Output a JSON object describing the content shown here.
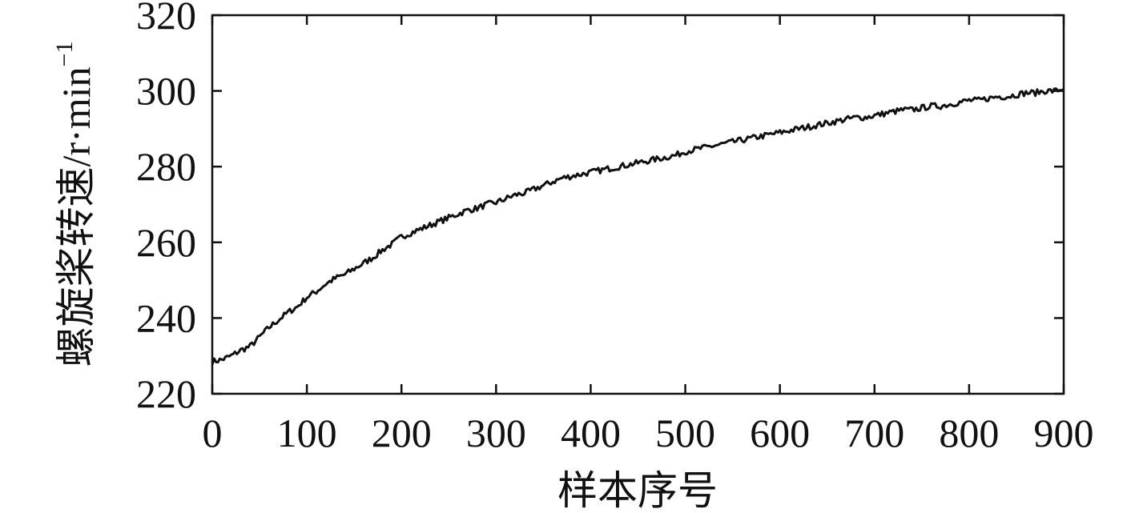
{
  "chart_data": {
    "type": "line",
    "title": "",
    "xlabel": "样本序号",
    "ylabel": "螺旋桨转速/r·min",
    "ylabel_superscript": "−1",
    "xlim": [
      0,
      900
    ],
    "ylim": [
      220,
      320
    ],
    "xticks": [
      "0",
      "100",
      "200",
      "300",
      "400",
      "500",
      "600",
      "700",
      "800",
      "900"
    ],
    "yticks": [
      "220",
      "240",
      "260",
      "280",
      "300",
      "320"
    ],
    "grid": false,
    "legend": "none",
    "series": [
      {
        "color": "#111111",
        "x": [
          0,
          10,
          20,
          30,
          40,
          50,
          60,
          70,
          80,
          90,
          100,
          110,
          120,
          130,
          140,
          150,
          160,
          170,
          180,
          190,
          200,
          210,
          220,
          230,
          240,
          250,
          260,
          270,
          280,
          290,
          300,
          310,
          320,
          330,
          340,
          350,
          360,
          370,
          380,
          390,
          400,
          410,
          420,
          430,
          440,
          450,
          460,
          470,
          480,
          490,
          500,
          510,
          520,
          530,
          540,
          550,
          560,
          570,
          580,
          590,
          600,
          610,
          620,
          630,
          640,
          650,
          660,
          670,
          680,
          690,
          700,
          710,
          720,
          730,
          740,
          750,
          760,
          770,
          780,
          790,
          800,
          810,
          820,
          830,
          840,
          850,
          860,
          870,
          880,
          890,
          900
        ],
        "y": [
          228.5,
          229.0,
          230.0,
          231.5,
          232.5,
          235.0,
          237.5,
          239.5,
          241.5,
          243.0,
          245.5,
          247.0,
          249.0,
          250.5,
          251.5,
          253.0,
          254.5,
          256.0,
          258.0,
          259.5,
          261.5,
          262.5,
          263.5,
          264.5,
          265.5,
          266.5,
          267.5,
          268.5,
          269.0,
          270.0,
          270.5,
          271.5,
          272.5,
          273.0,
          274.0,
          275.0,
          276.0,
          277.0,
          277.5,
          278.0,
          278.5,
          279.0,
          279.5,
          280.0,
          280.5,
          281.0,
          281.5,
          282.0,
          282.5,
          283.0,
          284.0,
          284.5,
          285.0,
          285.5,
          286.0,
          286.5,
          287.0,
          287.5,
          288.0,
          288.5,
          289.0,
          289.5,
          290.0,
          290.5,
          291.0,
          291.5,
          292.0,
          292.5,
          293.0,
          293.0,
          293.5,
          294.0,
          294.5,
          295.0,
          295.0,
          295.5,
          296.0,
          296.0,
          296.5,
          297.0,
          297.5,
          297.5,
          298.0,
          298.5,
          298.5,
          299.0,
          299.5,
          299.5,
          300.0,
          300.0,
          300.5
        ]
      }
    ]
  }
}
